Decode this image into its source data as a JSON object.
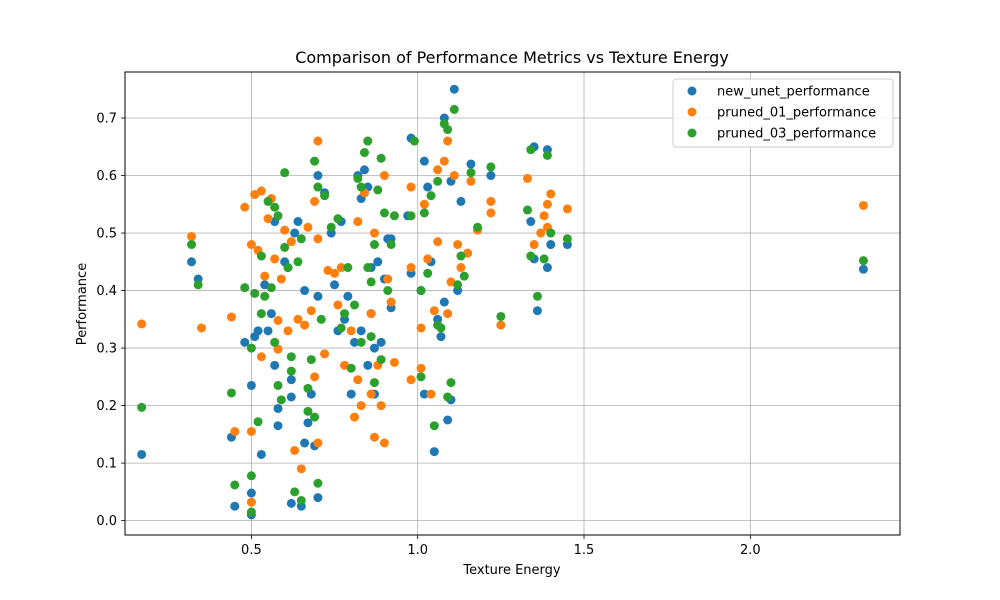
{
  "chart_data": {
    "type": "scatter",
    "title": "Comparison of Performance Metrics vs Texture Energy",
    "xlabel": "Texture Energy",
    "ylabel": "Performance",
    "xlim": [
      0.12,
      2.45
    ],
    "ylim": [
      -0.025,
      0.78
    ],
    "xticks": [
      0.5,
      1.0,
      1.5,
      2.0
    ],
    "xtick_labels": [
      "0.5",
      "1.0",
      "1.5",
      "2.0"
    ],
    "yticks": [
      0.0,
      0.1,
      0.2,
      0.3,
      0.4,
      0.5,
      0.6,
      0.7
    ],
    "ytick_labels": [
      "0.0",
      "0.1",
      "0.2",
      "0.3",
      "0.4",
      "0.5",
      "0.6",
      "0.7"
    ],
    "grid": true,
    "legend_position": "top-right",
    "series": [
      {
        "name": "new_unet_performance",
        "color": "#1f77b4",
        "points": [
          [
            0.17,
            0.115
          ],
          [
            0.32,
            0.45
          ],
          [
            0.34,
            0.42
          ],
          [
            0.44,
            0.145
          ],
          [
            0.45,
            0.025
          ],
          [
            0.48,
            0.31
          ],
          [
            0.5,
            0.235
          ],
          [
            0.5,
            0.048
          ],
          [
            0.5,
            0.01
          ],
          [
            0.51,
            0.32
          ],
          [
            0.52,
            0.33
          ],
          [
            0.53,
            0.115
          ],
          [
            0.54,
            0.41
          ],
          [
            0.55,
            0.33
          ],
          [
            0.56,
            0.36
          ],
          [
            0.57,
            0.27
          ],
          [
            0.57,
            0.52
          ],
          [
            0.58,
            0.195
          ],
          [
            0.58,
            0.165
          ],
          [
            0.6,
            0.45
          ],
          [
            0.61,
            0.44
          ],
          [
            0.62,
            0.245
          ],
          [
            0.62,
            0.215
          ],
          [
            0.62,
            0.03
          ],
          [
            0.63,
            0.5
          ],
          [
            0.64,
            0.52
          ],
          [
            0.65,
            0.025
          ],
          [
            0.66,
            0.4
          ],
          [
            0.66,
            0.135
          ],
          [
            0.67,
            0.17
          ],
          [
            0.68,
            0.22
          ],
          [
            0.69,
            0.13
          ],
          [
            0.7,
            0.39
          ],
          [
            0.7,
            0.04
          ],
          [
            0.7,
            0.6
          ],
          [
            0.72,
            0.57
          ],
          [
            0.74,
            0.5
          ],
          [
            0.75,
            0.41
          ],
          [
            0.76,
            0.33
          ],
          [
            0.77,
            0.52
          ],
          [
            0.78,
            0.35
          ],
          [
            0.79,
            0.39
          ],
          [
            0.8,
            0.22
          ],
          [
            0.81,
            0.31
          ],
          [
            0.82,
            0.6
          ],
          [
            0.83,
            0.56
          ],
          [
            0.83,
            0.33
          ],
          [
            0.84,
            0.61
          ],
          [
            0.85,
            0.58
          ],
          [
            0.85,
            0.27
          ],
          [
            0.86,
            0.44
          ],
          [
            0.86,
            0.36
          ],
          [
            0.87,
            0.3
          ],
          [
            0.87,
            0.22
          ],
          [
            0.88,
            0.45
          ],
          [
            0.89,
            0.31
          ],
          [
            0.9,
            0.42
          ],
          [
            0.91,
            0.49
          ],
          [
            0.92,
            0.37
          ],
          [
            0.92,
            0.49
          ],
          [
            0.97,
            0.53
          ],
          [
            0.98,
            0.43
          ],
          [
            0.98,
            0.665
          ],
          [
            1.01,
            0.4
          ],
          [
            1.02,
            0.625
          ],
          [
            1.02,
            0.22
          ],
          [
            1.03,
            0.58
          ],
          [
            1.04,
            0.45
          ],
          [
            1.05,
            0.12
          ],
          [
            1.06,
            0.35
          ],
          [
            1.07,
            0.32
          ],
          [
            1.08,
            0.7
          ],
          [
            1.08,
            0.38
          ],
          [
            1.09,
            0.175
          ],
          [
            1.1,
            0.21
          ],
          [
            1.1,
            0.59
          ],
          [
            1.11,
            0.75
          ],
          [
            1.12,
            0.4
          ],
          [
            1.13,
            0.555
          ],
          [
            1.16,
            0.62
          ],
          [
            1.22,
            0.6
          ],
          [
            1.34,
            0.52
          ],
          [
            1.35,
            0.65
          ],
          [
            1.35,
            0.455
          ],
          [
            1.36,
            0.365
          ],
          [
            1.39,
            0.44
          ],
          [
            1.39,
            0.645
          ],
          [
            1.4,
            0.48
          ],
          [
            1.45,
            0.48
          ],
          [
            2.34,
            0.437
          ]
        ]
      },
      {
        "name": "pruned_01_performance",
        "color": "#ff7f0e",
        "points": [
          [
            0.17,
            0.342
          ],
          [
            0.32,
            0.494
          ],
          [
            0.35,
            0.335
          ],
          [
            0.44,
            0.354
          ],
          [
            0.45,
            0.155
          ],
          [
            0.48,
            0.545
          ],
          [
            0.5,
            0.48
          ],
          [
            0.5,
            0.155
          ],
          [
            0.5,
            0.032
          ],
          [
            0.51,
            0.567
          ],
          [
            0.52,
            0.47
          ],
          [
            0.53,
            0.285
          ],
          [
            0.53,
            0.573
          ],
          [
            0.54,
            0.425
          ],
          [
            0.55,
            0.525
          ],
          [
            0.56,
            0.56
          ],
          [
            0.57,
            0.455
          ],
          [
            0.58,
            0.298
          ],
          [
            0.58,
            0.348
          ],
          [
            0.59,
            0.42
          ],
          [
            0.6,
            0.505
          ],
          [
            0.61,
            0.33
          ],
          [
            0.62,
            0.485
          ],
          [
            0.63,
            0.122
          ],
          [
            0.64,
            0.35
          ],
          [
            0.65,
            0.09
          ],
          [
            0.66,
            0.34
          ],
          [
            0.67,
            0.51
          ],
          [
            0.68,
            0.365
          ],
          [
            0.69,
            0.25
          ],
          [
            0.69,
            0.555
          ],
          [
            0.7,
            0.49
          ],
          [
            0.7,
            0.66
          ],
          [
            0.7,
            0.135
          ],
          [
            0.72,
            0.29
          ],
          [
            0.73,
            0.435
          ],
          [
            0.75,
            0.43
          ],
          [
            0.76,
            0.375
          ],
          [
            0.77,
            0.44
          ],
          [
            0.78,
            0.27
          ],
          [
            0.8,
            0.33
          ],
          [
            0.81,
            0.18
          ],
          [
            0.82,
            0.245
          ],
          [
            0.82,
            0.52
          ],
          [
            0.83,
            0.2
          ],
          [
            0.84,
            0.57
          ],
          [
            0.85,
            0.66
          ],
          [
            0.86,
            0.22
          ],
          [
            0.86,
            0.36
          ],
          [
            0.87,
            0.145
          ],
          [
            0.87,
            0.5
          ],
          [
            0.88,
            0.27
          ],
          [
            0.89,
            0.2
          ],
          [
            0.9,
            0.135
          ],
          [
            0.9,
            0.6
          ],
          [
            0.91,
            0.42
          ],
          [
            0.92,
            0.38
          ],
          [
            0.93,
            0.275
          ],
          [
            0.98,
            0.245
          ],
          [
            0.98,
            0.44
          ],
          [
            0.98,
            0.58
          ],
          [
            1.01,
            0.265
          ],
          [
            1.01,
            0.335
          ],
          [
            1.02,
            0.55
          ],
          [
            1.03,
            0.455
          ],
          [
            1.04,
            0.22
          ],
          [
            1.05,
            0.365
          ],
          [
            1.06,
            0.485
          ],
          [
            1.06,
            0.61
          ],
          [
            1.08,
            0.625
          ],
          [
            1.09,
            0.36
          ],
          [
            1.09,
            0.66
          ],
          [
            1.1,
            0.415
          ],
          [
            1.11,
            0.6
          ],
          [
            1.12,
            0.48
          ],
          [
            1.13,
            0.44
          ],
          [
            1.15,
            0.465
          ],
          [
            1.16,
            0.59
          ],
          [
            1.18,
            0.505
          ],
          [
            1.22,
            0.555
          ],
          [
            1.22,
            0.535
          ],
          [
            1.25,
            0.34
          ],
          [
            1.33,
            0.595
          ],
          [
            1.35,
            0.48
          ],
          [
            1.37,
            0.5
          ],
          [
            1.38,
            0.53
          ],
          [
            1.39,
            0.55
          ],
          [
            1.39,
            0.51
          ],
          [
            1.4,
            0.568
          ],
          [
            1.45,
            0.542
          ],
          [
            2.34,
            0.548
          ]
        ]
      },
      {
        "name": "pruned_03_performance",
        "color": "#2ca02c",
        "points": [
          [
            0.17,
            0.197
          ],
          [
            0.32,
            0.48
          ],
          [
            0.34,
            0.41
          ],
          [
            0.44,
            0.222
          ],
          [
            0.45,
            0.062
          ],
          [
            0.48,
            0.405
          ],
          [
            0.5,
            0.3
          ],
          [
            0.5,
            0.078
          ],
          [
            0.5,
            0.015
          ],
          [
            0.51,
            0.395
          ],
          [
            0.52,
            0.172
          ],
          [
            0.53,
            0.36
          ],
          [
            0.53,
            0.46
          ],
          [
            0.54,
            0.39
          ],
          [
            0.55,
            0.555
          ],
          [
            0.56,
            0.405
          ],
          [
            0.57,
            0.545
          ],
          [
            0.57,
            0.31
          ],
          [
            0.58,
            0.235
          ],
          [
            0.58,
            0.53
          ],
          [
            0.59,
            0.21
          ],
          [
            0.6,
            0.605
          ],
          [
            0.6,
            0.475
          ],
          [
            0.61,
            0.44
          ],
          [
            0.62,
            0.26
          ],
          [
            0.62,
            0.285
          ],
          [
            0.63,
            0.05
          ],
          [
            0.64,
            0.45
          ],
          [
            0.65,
            0.035
          ],
          [
            0.65,
            0.49
          ],
          [
            0.67,
            0.23
          ],
          [
            0.67,
            0.19
          ],
          [
            0.68,
            0.28
          ],
          [
            0.69,
            0.18
          ],
          [
            0.69,
            0.625
          ],
          [
            0.7,
            0.58
          ],
          [
            0.7,
            0.065
          ],
          [
            0.71,
            0.35
          ],
          [
            0.72,
            0.565
          ],
          [
            0.74,
            0.51
          ],
          [
            0.76,
            0.525
          ],
          [
            0.77,
            0.335
          ],
          [
            0.78,
            0.36
          ],
          [
            0.79,
            0.44
          ],
          [
            0.8,
            0.265
          ],
          [
            0.81,
            0.375
          ],
          [
            0.82,
            0.595
          ],
          [
            0.83,
            0.58
          ],
          [
            0.83,
            0.31
          ],
          [
            0.84,
            0.64
          ],
          [
            0.85,
            0.66
          ],
          [
            0.85,
            0.44
          ],
          [
            0.86,
            0.415
          ],
          [
            0.86,
            0.32
          ],
          [
            0.87,
            0.24
          ],
          [
            0.87,
            0.48
          ],
          [
            0.88,
            0.575
          ],
          [
            0.89,
            0.63
          ],
          [
            0.89,
            0.28
          ],
          [
            0.9,
            0.535
          ],
          [
            0.91,
            0.4
          ],
          [
            0.92,
            0.48
          ],
          [
            0.93,
            0.53
          ],
          [
            0.98,
            0.53
          ],
          [
            0.99,
            0.66
          ],
          [
            1.01,
            0.25
          ],
          [
            1.01,
            0.4
          ],
          [
            1.02,
            0.535
          ],
          [
            1.03,
            0.43
          ],
          [
            1.04,
            0.565
          ],
          [
            1.05,
            0.165
          ],
          [
            1.06,
            0.59
          ],
          [
            1.06,
            0.34
          ],
          [
            1.07,
            0.335
          ],
          [
            1.08,
            0.69
          ],
          [
            1.09,
            0.215
          ],
          [
            1.09,
            0.68
          ],
          [
            1.1,
            0.24
          ],
          [
            1.11,
            0.715
          ],
          [
            1.12,
            0.41
          ],
          [
            1.13,
            0.46
          ],
          [
            1.14,
            0.425
          ],
          [
            1.16,
            0.605
          ],
          [
            1.18,
            0.51
          ],
          [
            1.22,
            0.615
          ],
          [
            1.25,
            0.355
          ],
          [
            1.33,
            0.54
          ],
          [
            1.34,
            0.645
          ],
          [
            1.34,
            0.46
          ],
          [
            1.36,
            0.39
          ],
          [
            1.38,
            0.455
          ],
          [
            1.39,
            0.635
          ],
          [
            1.4,
            0.5
          ],
          [
            1.45,
            0.49
          ],
          [
            2.34,
            0.452
          ]
        ]
      }
    ]
  }
}
